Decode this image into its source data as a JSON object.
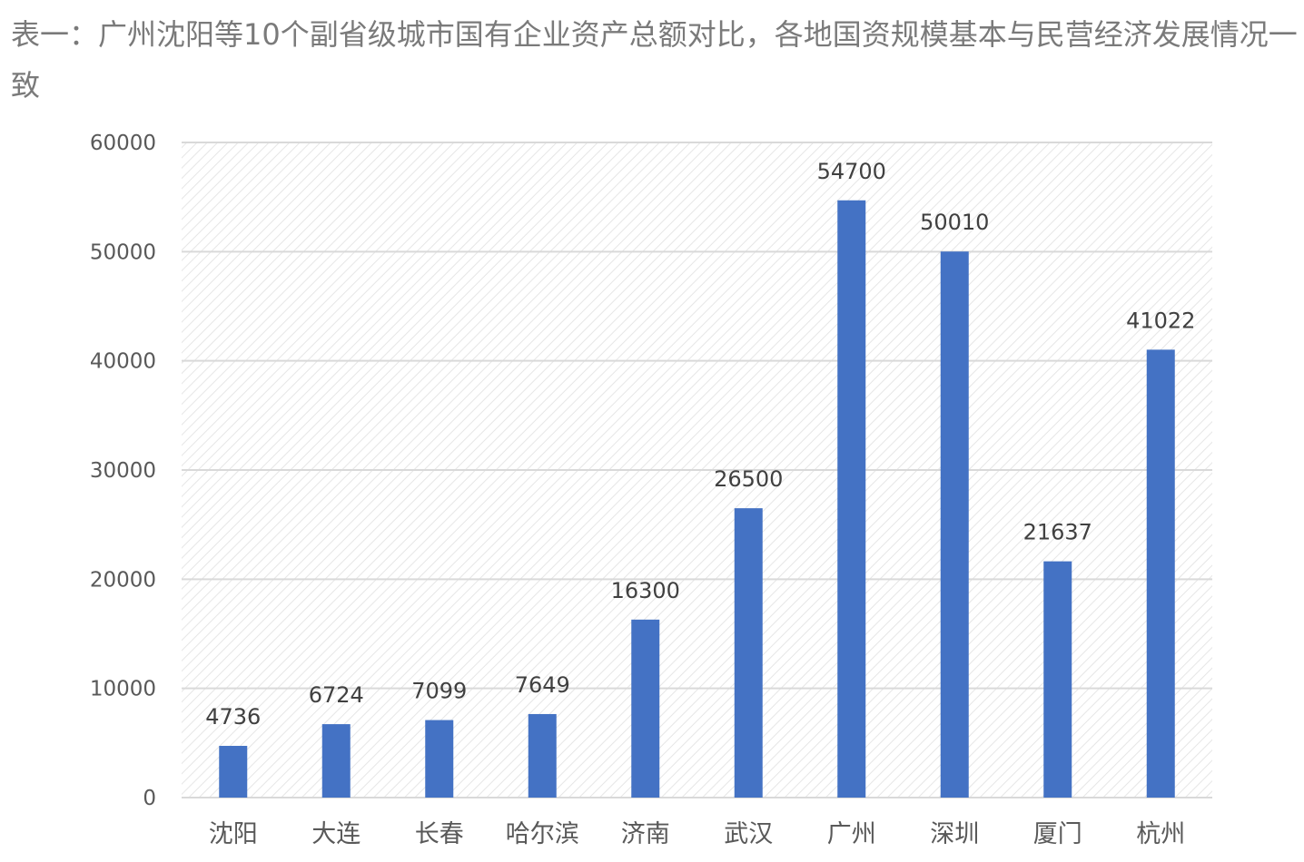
{
  "caption": "表一：广州沈阳等10个副省级城市国有企业资产总额对比，各地国资规模基本与民营经济发展情况一致",
  "chart_data": {
    "type": "bar",
    "title": "",
    "xlabel": "",
    "ylabel": "",
    "categories": [
      "沈阳",
      "大连",
      "长春",
      "哈尔滨",
      "济南",
      "武汉",
      "广州",
      "深圳",
      "厦门",
      "杭州"
    ],
    "values": [
      4736,
      6724,
      7099,
      7649,
      16300,
      26500,
      54700,
      50010,
      21637,
      41022
    ],
    "data_labels": [
      "4736",
      "6724",
      "7099",
      "7649",
      "16300",
      "26500",
      "54700",
      "50010",
      "21637",
      "41022"
    ],
    "ylim": [
      0,
      60000
    ],
    "yticks": [
      0,
      10000,
      20000,
      30000,
      40000,
      50000,
      60000
    ],
    "ytick_labels": [
      "0",
      "10000",
      "20000",
      "30000",
      "40000",
      "50000",
      "60000"
    ],
    "grid": true,
    "legend": "none",
    "bar_color": "#4472c4",
    "grid_color": "#d9d9d9",
    "background": "hatched"
  }
}
